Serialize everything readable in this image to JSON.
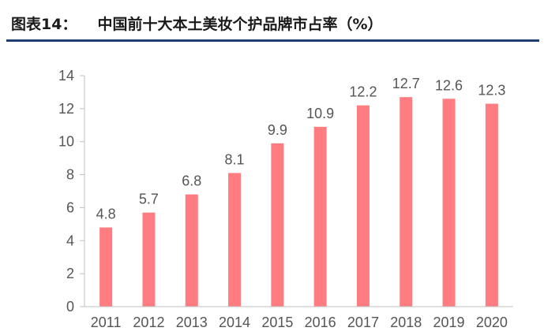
{
  "header": {
    "figure_label": "图表14：",
    "title": "中国前十大本土美妆个护品牌市占率（%）"
  },
  "colors": {
    "bar": "#ff7c80",
    "rule": "#1f3f73",
    "axis": "#bfbfbf",
    "text": "#555555"
  },
  "chart_data": {
    "type": "bar",
    "title": "中国前十大本土美妆个护品牌市占率（%）",
    "categories": [
      "2011",
      "2012",
      "2013",
      "2014",
      "2015",
      "2016",
      "2017",
      "2018",
      "2019",
      "2020"
    ],
    "values": [
      4.8,
      5.7,
      6.8,
      8.1,
      9.9,
      10.9,
      12.2,
      12.7,
      12.6,
      12.3
    ],
    "data_labels": [
      "4.8",
      "5.7",
      "6.8",
      "8.1",
      "9.9",
      "10.9",
      "12.2",
      "12.7",
      "12.6",
      "12.3"
    ],
    "yticks": [
      "0",
      "2",
      "4",
      "6",
      "8",
      "10",
      "12",
      "14"
    ],
    "ylim": [
      0,
      14
    ],
    "xlabel": "",
    "ylabel": "",
    "grid": false,
    "legend": "none"
  }
}
